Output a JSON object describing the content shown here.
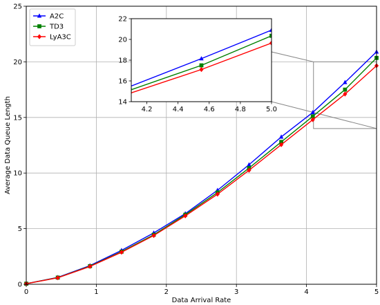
{
  "chart_data": {
    "type": "line",
    "title": "",
    "xlabel": "Data Arrival Rate",
    "ylabel": "Average Data Queue Length",
    "xlim": [
      0,
      5
    ],
    "ylim": [
      0,
      25
    ],
    "xticks": [
      "0",
      "1",
      "2",
      "3",
      "4",
      "5"
    ],
    "yticks": [
      "0",
      "5",
      "10",
      "15",
      "20",
      "25"
    ],
    "grid": true,
    "legend_position": "top-left",
    "x": [
      0,
      0.45,
      0.91,
      1.36,
      1.82,
      2.27,
      2.73,
      3.18,
      3.64,
      4.09,
      4.55,
      5.0
    ],
    "series": [
      {
        "name": "A2C",
        "color": "#0000ff",
        "marker": "triangle",
        "values": [
          0.05,
          0.62,
          1.68,
          3.05,
          4.62,
          6.35,
          8.45,
          10.75,
          13.25,
          15.45,
          18.15,
          20.9
        ]
      },
      {
        "name": "TD3",
        "color": "#008000",
        "marker": "square",
        "values": [
          0.05,
          0.6,
          1.63,
          2.93,
          4.45,
          6.25,
          8.25,
          10.45,
          12.8,
          15.1,
          17.5,
          20.35
        ]
      },
      {
        "name": "LyA3C",
        "color": "#ff0000",
        "marker": "diamond",
        "values": [
          0.05,
          0.58,
          1.6,
          2.88,
          4.38,
          6.15,
          8.1,
          10.25,
          12.55,
          14.8,
          17.1,
          19.65
        ]
      }
    ],
    "inset": {
      "xlim": [
        4.1,
        5.0
      ],
      "ylim": [
        14,
        22
      ],
      "xticks": [
        "4.2",
        "4.4",
        "4.6",
        "4.8",
        "5.0"
      ],
      "yticks": [
        "14",
        "16",
        "18",
        "20",
        "22"
      ],
      "zoom_region": {
        "x": [
          4.1,
          5.0
        ],
        "y": [
          14,
          20
        ]
      }
    }
  }
}
